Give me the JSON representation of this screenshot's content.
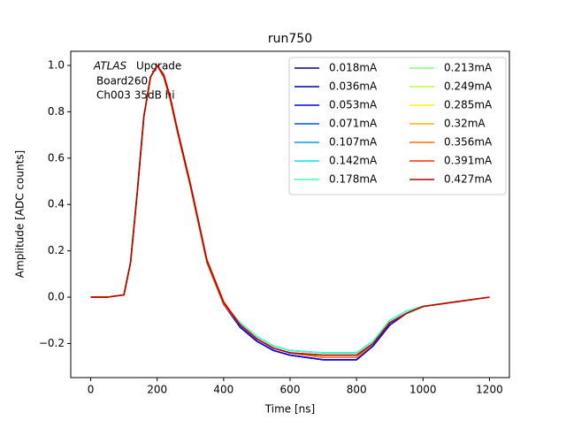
{
  "chart_data": {
    "type": "line",
    "title": "run750",
    "x_label": "Time [ns]",
    "y_label": "Amplitude [ADC counts]",
    "annotation": [
      "ATLAS",
      "Upgrade",
      "Board260",
      "Ch003 35dB hi"
    ],
    "legend": "upper right",
    "legend_columns": 2,
    "xlim": [
      -60,
      1260
    ],
    "xticks": [
      0,
      200,
      400,
      600,
      800,
      1000,
      1200
    ],
    "ylim": [
      -0.347,
      1.061
    ],
    "yticks": [
      {
        "value": -0.2,
        "label": "−0.2"
      },
      {
        "value": 0,
        "label": "0.0"
      },
      {
        "value": 0.2,
        "label": "0.2"
      },
      {
        "value": 0.4,
        "label": "0.4"
      },
      {
        "value": 0.6,
        "label": "0.6"
      },
      {
        "value": 0.8,
        "label": "0.8"
      },
      {
        "value": 1,
        "label": "1.0"
      }
    ],
    "x": [
      0,
      50,
      100,
      120,
      140,
      160,
      180,
      200,
      220,
      240,
      260,
      280,
      300,
      350,
      400,
      450,
      500,
      550,
      600,
      700,
      800,
      850,
      900,
      950,
      1000,
      1100,
      1200
    ],
    "series": [
      {
        "name": "0.018mA",
        "color": "#000080",
        "values": [
          0,
          0,
          0.01,
          0.15,
          0.45,
          0.78,
          0.95,
          1.0,
          0.95,
          0.85,
          0.72,
          0.6,
          0.48,
          0.15,
          -0.03,
          -0.13,
          -0.19,
          -0.23,
          -0.25,
          -0.27,
          -0.27,
          -0.21,
          -0.12,
          -0.07,
          -0.04,
          -0.02,
          0
        ]
      },
      {
        "name": "0.036mA",
        "color": "#0000b2",
        "values": [
          0,
          0,
          0.01,
          0.15,
          0.45,
          0.78,
          0.95,
          1.0,
          0.95,
          0.85,
          0.72,
          0.6,
          0.48,
          0.15,
          -0.03,
          -0.13,
          -0.19,
          -0.23,
          -0.25,
          -0.27,
          -0.27,
          -0.21,
          -0.12,
          -0.07,
          -0.04,
          -0.02,
          0
        ]
      },
      {
        "name": "0.053mA",
        "color": "#0000f1",
        "values": [
          0,
          0,
          0.01,
          0.15,
          0.45,
          0.78,
          0.95,
          1.0,
          0.95,
          0.85,
          0.72,
          0.6,
          0.48,
          0.15,
          -0.03,
          -0.13,
          -0.19,
          -0.23,
          -0.25,
          -0.27,
          -0.27,
          -0.21,
          -0.12,
          -0.07,
          -0.04,
          -0.02,
          0
        ]
      },
      {
        "name": "0.071mA",
        "color": "#0050ff",
        "values": [
          0,
          0,
          0.01,
          0.15,
          0.45,
          0.78,
          0.95,
          1.0,
          0.95,
          0.85,
          0.72,
          0.6,
          0.48,
          0.15,
          -0.03,
          -0.12,
          -0.18,
          -0.22,
          -0.24,
          -0.26,
          -0.26,
          -0.2,
          -0.11,
          -0.07,
          -0.04,
          -0.02,
          0
        ]
      },
      {
        "name": "0.107mA",
        "color": "#0096ff",
        "values": [
          0,
          0,
          0.01,
          0.15,
          0.45,
          0.78,
          0.95,
          1.0,
          0.95,
          0.85,
          0.72,
          0.6,
          0.48,
          0.15,
          -0.03,
          -0.11,
          -0.17,
          -0.21,
          -0.23,
          -0.24,
          -0.24,
          -0.19,
          -0.1,
          -0.06,
          -0.04,
          -0.02,
          0
        ]
      },
      {
        "name": "0.142mA",
        "color": "#00e4f8",
        "values": [
          0,
          0,
          0.01,
          0.15,
          0.45,
          0.78,
          0.95,
          1.0,
          0.95,
          0.85,
          0.72,
          0.6,
          0.48,
          0.15,
          -0.03,
          -0.11,
          -0.17,
          -0.21,
          -0.23,
          -0.24,
          -0.24,
          -0.19,
          -0.1,
          -0.06,
          -0.04,
          -0.02,
          0
        ]
      },
      {
        "name": "0.178mA",
        "color": "#3dffba",
        "values": [
          0,
          0,
          0.01,
          0.15,
          0.45,
          0.78,
          0.95,
          1.0,
          0.95,
          0.85,
          0.72,
          0.6,
          0.48,
          0.15,
          -0.03,
          -0.11,
          -0.17,
          -0.21,
          -0.23,
          -0.24,
          -0.24,
          -0.19,
          -0.1,
          -0.06,
          -0.04,
          -0.02,
          0
        ]
      },
      {
        "name": "0.213mA",
        "color": "#7dff7a",
        "values": [
          0,
          0,
          0.01,
          0.15,
          0.45,
          0.78,
          0.95,
          1.0,
          0.95,
          0.85,
          0.72,
          0.6,
          0.48,
          0.15,
          -0.03,
          -0.12,
          -0.18,
          -0.22,
          -0.24,
          -0.26,
          -0.26,
          -0.2,
          -0.11,
          -0.07,
          -0.04,
          -0.02,
          0
        ]
      },
      {
        "name": "0.249mA",
        "color": "#baff3d",
        "values": [
          0,
          0,
          0.01,
          0.15,
          0.45,
          0.78,
          0.95,
          1.0,
          0.95,
          0.85,
          0.72,
          0.6,
          0.48,
          0.15,
          -0.03,
          -0.12,
          -0.18,
          -0.22,
          -0.24,
          -0.26,
          -0.26,
          -0.2,
          -0.11,
          -0.07,
          -0.04,
          -0.02,
          0
        ]
      },
      {
        "name": "0.285mA",
        "color": "#f8f500",
        "values": [
          0,
          0,
          0.01,
          0.15,
          0.45,
          0.78,
          0.95,
          1.0,
          0.95,
          0.85,
          0.72,
          0.6,
          0.48,
          0.15,
          -0.03,
          -0.12,
          -0.18,
          -0.22,
          -0.24,
          -0.26,
          -0.26,
          -0.2,
          -0.11,
          -0.07,
          -0.04,
          -0.02,
          0
        ]
      },
      {
        "name": "0.32mA",
        "color": "#ffb100",
        "values": [
          0,
          0,
          0.01,
          0.15,
          0.45,
          0.78,
          0.95,
          1.0,
          0.95,
          0.85,
          0.72,
          0.6,
          0.48,
          0.15,
          -0.03,
          -0.12,
          -0.18,
          -0.22,
          -0.24,
          -0.26,
          -0.26,
          -0.2,
          -0.11,
          -0.07,
          -0.04,
          -0.02,
          0
        ]
      },
      {
        "name": "0.356mA",
        "color": "#ff6c00",
        "values": [
          0,
          0,
          0.01,
          0.15,
          0.45,
          0.78,
          0.95,
          1.0,
          0.95,
          0.85,
          0.72,
          0.6,
          0.48,
          0.15,
          -0.03,
          -0.12,
          -0.18,
          -0.22,
          -0.24,
          -0.26,
          -0.26,
          -0.2,
          -0.11,
          -0.07,
          -0.04,
          -0.02,
          0
        ]
      },
      {
        "name": "0.391mA",
        "color": "#ff2900",
        "values": [
          0,
          0,
          0.01,
          0.15,
          0.45,
          0.78,
          0.95,
          1.0,
          0.95,
          0.85,
          0.72,
          0.6,
          0.48,
          0.15,
          -0.03,
          -0.12,
          -0.18,
          -0.22,
          -0.24,
          -0.25,
          -0.25,
          -0.2,
          -0.11,
          -0.07,
          -0.04,
          -0.02,
          0
        ]
      },
      {
        "name": "0.427mA",
        "color": "#b20000",
        "values": [
          0,
          0,
          0.01,
          0.15,
          0.45,
          0.78,
          0.95,
          1.0,
          0.96,
          0.86,
          0.73,
          0.61,
          0.49,
          0.16,
          -0.02,
          -0.12,
          -0.18,
          -0.22,
          -0.24,
          -0.25,
          -0.25,
          -0.2,
          -0.11,
          -0.07,
          -0.04,
          -0.02,
          0
        ]
      }
    ]
  }
}
